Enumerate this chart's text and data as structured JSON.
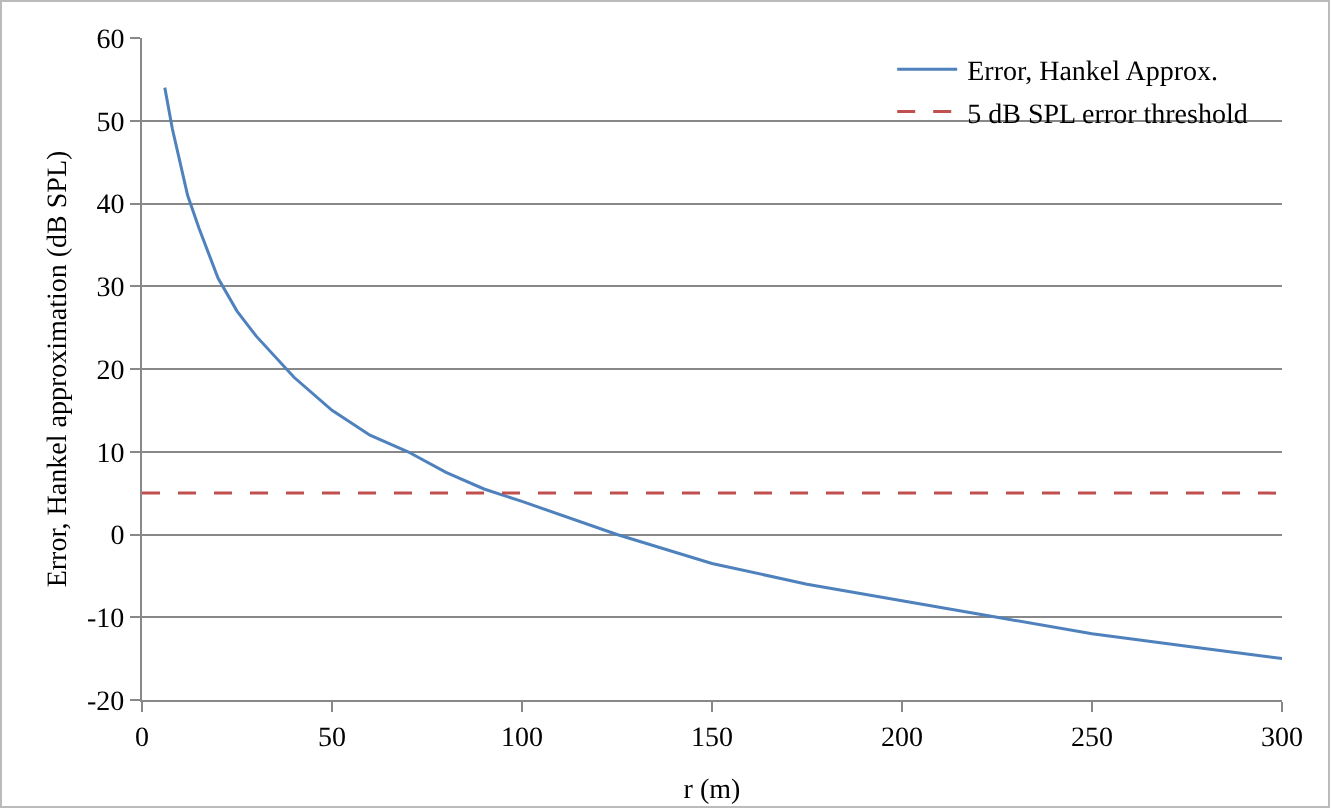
{
  "chart_data": {
    "type": "line",
    "xlabel": "r (m)",
    "ylabel": "Error, Hankel approximation (dB SPL)",
    "x": [
      6,
      8,
      10,
      12,
      15,
      20,
      25,
      30,
      40,
      50,
      60,
      70,
      80,
      90,
      100,
      125,
      150,
      175,
      200,
      225,
      250,
      275,
      300
    ],
    "series": [
      {
        "name": "Error, Hankel Approx.",
        "color": "#4f81bd",
        "values": [
          54,
          49,
          45,
          41,
          37,
          31,
          27,
          24,
          19,
          15,
          12,
          10,
          7.5,
          5.5,
          4,
          0,
          -3.5,
          -6,
          -8,
          -10,
          -12,
          -13.5,
          -15
        ]
      }
    ],
    "ref_lines": [
      {
        "axis": "y",
        "value": 5,
        "label": "5 dB SPL error threshold",
        "color": "#c0504d",
        "line_style": "dashed"
      }
    ],
    "xlim": [
      0,
      300
    ],
    "xticks": [
      0,
      50,
      100,
      150,
      200,
      250,
      300
    ],
    "ylim": [
      -20,
      60
    ],
    "yticks": [
      -20,
      -10,
      0,
      10,
      20,
      30,
      40,
      50,
      60
    ],
    "grid": "y",
    "legend": "top right",
    "marker": "none",
    "line_style": "solid"
  }
}
